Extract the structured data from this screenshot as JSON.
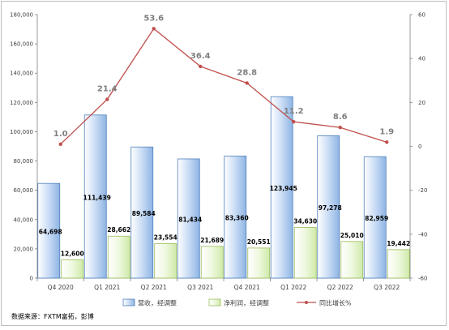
{
  "chart_data": {
    "type": "bar",
    "categories": [
      "Q4 2020",
      "Q1 2021",
      "Q2 2021",
      "Q3 2021",
      "Q4 2021",
      "Q1 2022",
      "Q2 2022",
      "Q3 2022"
    ],
    "series": [
      {
        "name": "营收，经调整",
        "type": "bar",
        "axis": "left",
        "values": [
          64698,
          111439,
          89584,
          81434,
          83360,
          123945,
          97278,
          82959
        ],
        "labels": [
          "64,698",
          "111,439",
          "89,584",
          "81,434",
          "83,360",
          "123,945",
          "97,278",
          "82,959"
        ]
      },
      {
        "name": "净利润，经调整",
        "type": "bar",
        "axis": "left",
        "values": [
          12600,
          28662,
          23554,
          21689,
          20551,
          34630,
          25010,
          19442
        ],
        "labels": [
          "12,600",
          "28,662",
          "23,554",
          "21,689",
          "20,551",
          "34,630",
          "25,010",
          "19,442"
        ]
      },
      {
        "name": "同比增长%",
        "type": "line",
        "axis": "right",
        "values": [
          1.0,
          21.4,
          53.6,
          36.4,
          28.8,
          11.2,
          8.6,
          1.9
        ],
        "labels": [
          "1.0",
          "21.4",
          "53.6",
          "36.4",
          "28.8",
          "11.2",
          "8.6",
          "1.9"
        ]
      }
    ],
    "y_left": {
      "ylim": [
        0,
        180000
      ],
      "ticks": [
        0,
        20000,
        40000,
        60000,
        80000,
        100000,
        120000,
        140000,
        160000,
        180000
      ],
      "tick_labels": [
        "0",
        "20,000",
        "40,000",
        "60,000",
        "80,000",
        "100,000",
        "120,000",
        "140,000",
        "160,000",
        "180,000"
      ]
    },
    "y_right": {
      "ylim": [
        -60,
        60
      ],
      "ticks": [
        -60,
        -40,
        -20,
        0,
        20,
        40,
        60
      ],
      "tick_labels": [
        "-60",
        "-40",
        "-20",
        "0",
        "20",
        "40",
        "60"
      ]
    },
    "grid": false,
    "legend_position": "bottom",
    "colors": {
      "revenue": "#8eb4e3",
      "profit": "#d7f0b3",
      "growth": "#c0504d",
      "growth_label": "#7f7f7f"
    }
  },
  "source_note": "数据来源：FXTM富拓，彭博"
}
